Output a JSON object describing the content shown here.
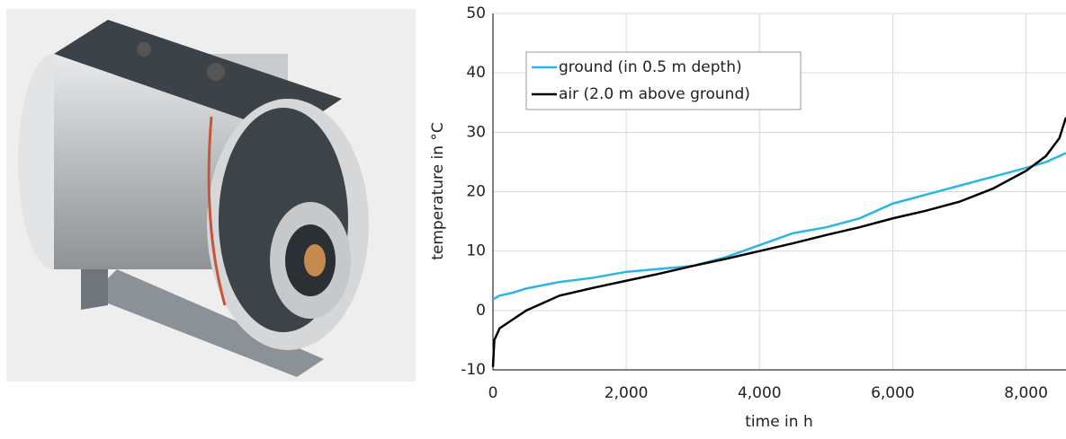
{
  "chart_data": {
    "type": "line",
    "x_label": "time in h",
    "y_label": "temperature in °C",
    "x": [
      0,
      20,
      100,
      300,
      500,
      1000,
      1500,
      2000,
      2500,
      3000,
      3500,
      4000,
      4500,
      5000,
      5500,
      6000,
      6500,
      7000,
      7500,
      8000,
      8300,
      8500,
      8600
    ],
    "series": [
      {
        "name": "ground (in 0.5 m depth)",
        "color": "#29b6e6",
        "values": [
          2,
          2,
          2.5,
          3,
          3.7,
          4.8,
          5.5,
          6.5,
          7,
          7.5,
          9,
          11,
          13,
          14,
          15.5,
          18,
          19.5,
          21,
          22.5,
          24,
          25,
          26,
          26.5
        ]
      },
      {
        "name": "air (2.0 m above ground)",
        "color": "#000000",
        "values": [
          -9.5,
          -5,
          -3,
          -1.5,
          0,
          2.5,
          3.8,
          5,
          6.2,
          7.5,
          8.7,
          10,
          11.3,
          12.7,
          14,
          15.5,
          16.8,
          18.3,
          20.5,
          23.5,
          26,
          29,
          32.5
        ]
      }
    ],
    "xlim": [
      0,
      8600
    ],
    "ylim": [
      -10,
      50
    ],
    "xticks": [
      0,
      {
        "value": 2000,
        "label": "2,000"
      },
      {
        "value": 4000,
        "label": "4,000"
      },
      {
        "value": 6000,
        "label": "6,000"
      },
      {
        "value": 8000,
        "label": "8,000"
      }
    ],
    "yticks": [
      -10,
      0,
      10,
      20,
      30,
      40,
      50
    ],
    "grid": true,
    "legend": "upper left"
  }
}
